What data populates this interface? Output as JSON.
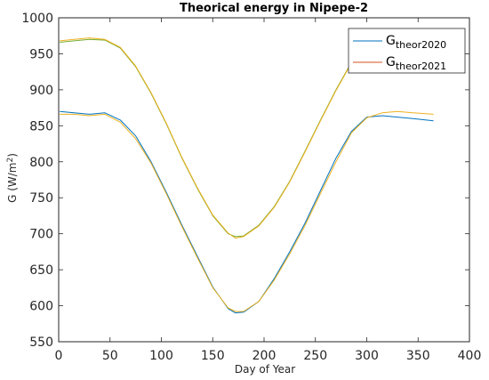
{
  "chart_data": {
    "type": "line",
    "title": "Theorical energy in Nipepe-2",
    "xlabel": "Day of Year",
    "ylabel_main": "G (W/m",
    "ylabel_sup": "2",
    "ylabel_end": ")",
    "xlim": [
      0,
      400
    ],
    "ylim": [
      550,
      1000
    ],
    "xticks": [
      0,
      50,
      100,
      150,
      200,
      250,
      300,
      350,
      400
    ],
    "yticks": [
      550,
      600,
      650,
      700,
      750,
      800,
      850,
      900,
      950,
      1000
    ],
    "grid": false,
    "legend_position": "top-right",
    "legend": [
      {
        "main": "G",
        "sub": "theor2020",
        "color": "#0072BD"
      },
      {
        "main": "G",
        "sub": "theor2021",
        "color": "#D95319"
      }
    ],
    "colors": {
      "upper_2020": "#77AC30",
      "upper_2021": "#EDB120",
      "lower_2020": "#0072BD",
      "lower_2021": "#EDB120"
    },
    "x": [
      1,
      15,
      30,
      45,
      60,
      75,
      90,
      105,
      120,
      135,
      150,
      165,
      172,
      180,
      195,
      210,
      225,
      240,
      255,
      270,
      285,
      300,
      315,
      330,
      345,
      365
    ],
    "series": [
      {
        "key": "upper_2020",
        "values": [
          966,
          968,
          970,
          969,
          958,
          932,
          895,
          852,
          805,
          763,
          725,
          700,
          696,
          697,
          712,
          738,
          773,
          815,
          858,
          900,
          938,
          962,
          970,
          972,
          970,
          966
        ]
      },
      {
        "key": "upper_2021",
        "values": [
          968,
          970,
          972,
          970,
          959,
          933,
          896,
          853,
          806,
          764,
          726,
          701,
          694,
          696,
          711,
          737,
          772,
          814,
          857,
          899,
          937,
          961,
          969,
          971,
          969,
          965
        ]
      },
      {
        "key": "lower_2020",
        "values": [
          870,
          868,
          866,
          868,
          858,
          836,
          800,
          757,
          712,
          669,
          626,
          596,
          590,
          591,
          606,
          638,
          675,
          715,
          760,
          805,
          842,
          862,
          864,
          862,
          860,
          857
        ]
      },
      {
        "key": "lower_2021",
        "values": [
          866,
          866,
          864,
          866,
          855,
          832,
          798,
          755,
          710,
          667,
          625,
          597,
          592,
          592,
          606,
          636,
          672,
          712,
          756,
          800,
          840,
          861,
          868,
          870,
          868,
          866
        ]
      }
    ]
  }
}
